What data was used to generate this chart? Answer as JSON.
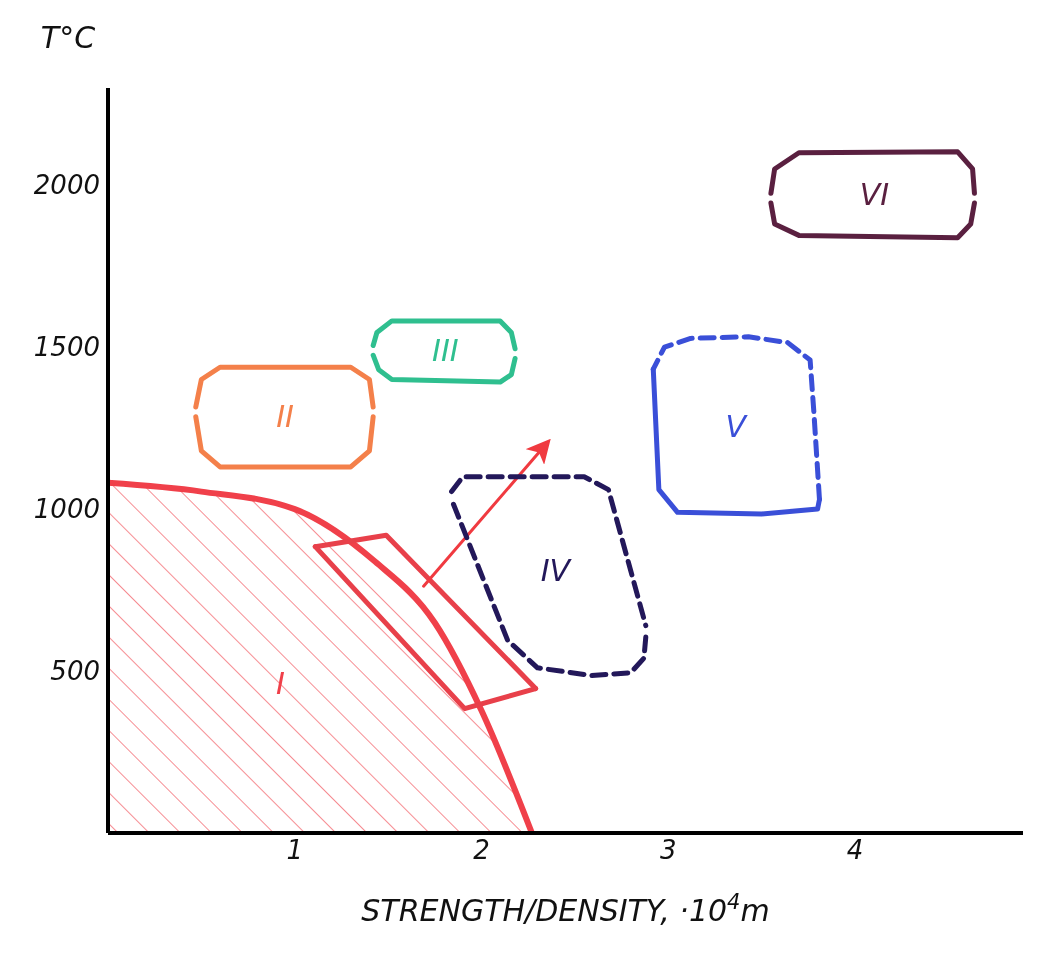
{
  "chart_data": {
    "type": "line",
    "xlabel": "STRENGTH/DENSITY, ·10$^{4}$m",
    "ylabel": "T°C",
    "xlim": [
      0,
      4.9
    ],
    "ylim": [
      0,
      2300
    ],
    "xticks": [
      1,
      2,
      3,
      4
    ],
    "yticks": [
      500,
      1000,
      1500,
      2000
    ],
    "marker": "none",
    "grid": false,
    "legend": false,
    "series": [
      {
        "type": "area",
        "name": "I",
        "color": "#f0404a",
        "x": [
          0,
          0.5,
          1,
          1.43,
          1.75,
          2.0,
          2.27
        ],
        "values": [
          1081,
          1054,
          1000,
          838,
          649,
          378,
          0
        ]
      },
      {
        "color": "#e8404a",
        "x": [
          1.11,
          1.49,
          2.29
        ],
        "values": [
          884,
          919,
          446
        ]
      },
      {
        "color": "#e8404a",
        "x": [
          1.11,
          1.91,
          2.29
        ],
        "values": [
          884,
          384,
          446
        ]
      },
      {
        "color": "#f03a40",
        "x": [
          1.69,
          2.35
        ],
        "values": [
          762,
          1203
        ]
      },
      {
        "name": "II",
        "color": "#f4804a",
        "x": [
          0.47,
          0.5,
          0.6,
          1.3,
          1.4,
          1.42
        ],
        "values": [
          1315,
          1400,
          1438,
          1438,
          1400,
          1315
        ]
      },
      {
        "color": "#f4804a",
        "x": [
          0.47,
          0.5,
          0.6,
          1.3,
          1.4,
          1.42
        ],
        "values": [
          1285,
          1180,
          1130,
          1130,
          1180,
          1285
        ]
      },
      {
        "name": "III",
        "color": "#2fbf8f",
        "x": [
          1.42,
          1.44,
          1.52,
          2.1,
          2.16,
          2.18
        ],
        "values": [
          1505,
          1545,
          1581,
          1581,
          1545,
          1495
        ]
      },
      {
        "color": "#2fbf8f",
        "x": [
          1.42,
          1.45,
          1.52,
          2.1,
          2.16,
          2.18
        ],
        "values": [
          1475,
          1430,
          1400,
          1392,
          1415,
          1465
        ]
      },
      {
        "name": "IV",
        "color": "#23185a",
        "line_style": "dashed",
        "x": [
          1.84,
          1.9,
          2.55,
          2.68,
          2.88
        ],
        "values": [
          1054,
          1100,
          1100,
          1060,
          640
        ]
      },
      {
        "color": "#23185a",
        "line_style": "dashed",
        "x": [
          1.85,
          2.14,
          2.3,
          2.59,
          2.8,
          2.87,
          2.88
        ],
        "values": [
          1015,
          595,
          510,
          486,
          495,
          540,
          605
        ]
      },
      {
        "name": "V",
        "color": "#3a4fd8",
        "x": [
          2.92,
          2.95,
          3.05,
          3.5,
          3.8,
          3.81
        ],
        "values": [
          1432,
          1060,
          990,
          985,
          1000,
          1030
        ]
      },
      {
        "color": "#3a4fd8",
        "line_style": "dashed",
        "x": [
          3.81,
          3.78,
          3.76,
          3.64,
          3.43,
          3.12,
          2.98,
          2.92
        ],
        "values": [
          1030,
          1300,
          1460,
          1514,
          1532,
          1527,
          1500,
          1432
        ]
      },
      {
        "name": "VI",
        "color": "#5a2040",
        "x": [
          3.55,
          3.57,
          3.7,
          4.55,
          4.63,
          4.64
        ],
        "values": [
          1975,
          2050,
          2100,
          2103,
          2050,
          1975
        ]
      },
      {
        "color": "#5a2040",
        "x": [
          3.55,
          3.57,
          3.7,
          4.55,
          4.62,
          4.64
        ],
        "values": [
          1945,
          1880,
          1845,
          1838,
          1880,
          1945
        ]
      }
    ]
  }
}
